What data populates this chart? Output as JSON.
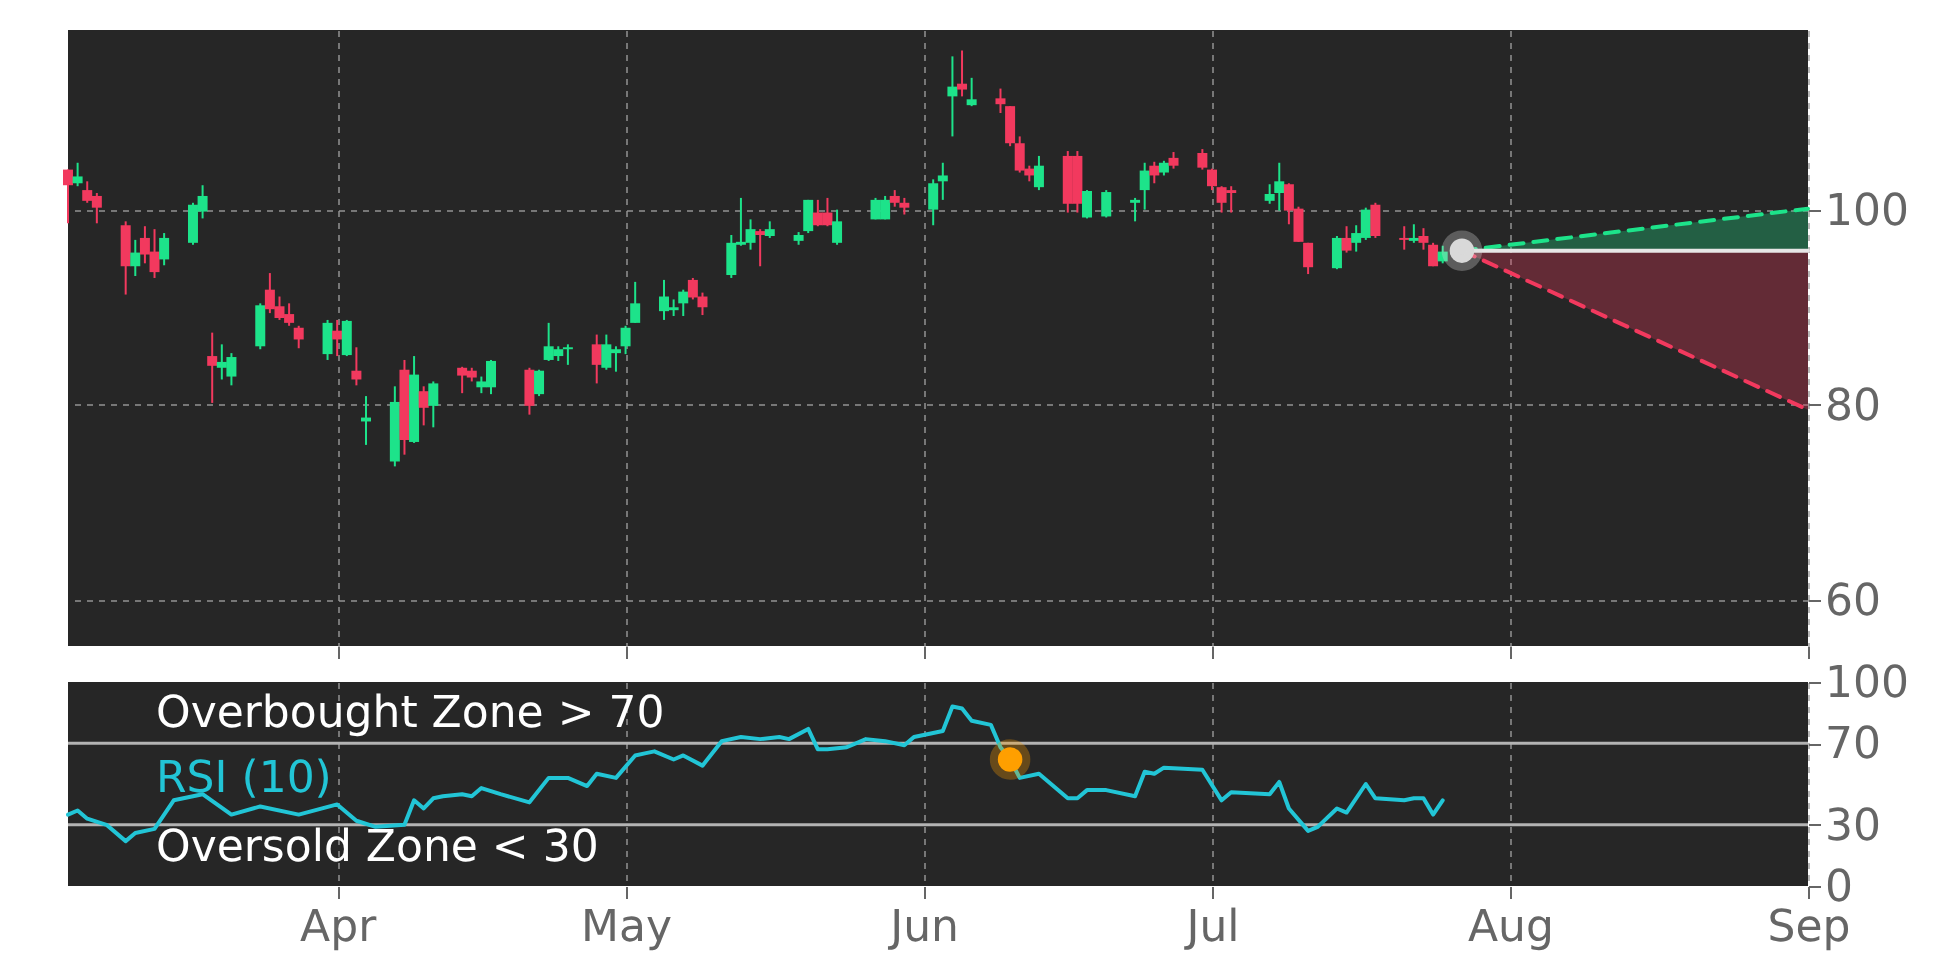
{
  "chart_data": [
    {
      "type": "candlestick",
      "colors": [
        "#f2395e",
        "#1de38a",
        "#f2395e",
        "#f2395e",
        "#f2395e",
        "#1de38a",
        "#f2395e",
        "#f2395e",
        "#1de38a",
        "#1de38a",
        "#1de38a",
        "#f2395e",
        "#1de38a",
        "#1de38a",
        "#1de38a",
        "#f2395e",
        "#f2395e",
        "#f2395e",
        "#f2395e",
        "#1de38a",
        "#f2395e",
        "#1de38a",
        "#f2395e",
        "#1de38a",
        "#1de38a",
        "#f2395e",
        "#1de38a",
        "#f2395e",
        "#1de38a",
        "#f2395e",
        "#f2395e",
        "#1de38a",
        "#1de38a",
        "#f2395e",
        "#1de38a",
        "#1de38a",
        "#1de38a",
        "#1de38a",
        "#f2395e",
        "#1de38a",
        "#1de38a",
        "#1de38a",
        "#1de38a",
        "#1de38a",
        "#1de38a",
        "#1de38a",
        "#f2395e",
        "#f2395e",
        "#1de38a",
        "#1de38a",
        "#1de38a",
        "#f2395e",
        "#1de38a",
        "#1de38a",
        "#1de38a",
        "#f2395e",
        "#f2395e",
        "#1de38a",
        "#1de38a",
        "#1de38a",
        "#f2395e",
        "#f2395e",
        "#1de38a",
        "#1de38a",
        "#1de38a",
        "#f2395e",
        "#1de38a",
        "#f2395e",
        "#f2395e",
        "#f2395e",
        "#f2395e",
        "#1de38a",
        "#f2395e",
        "#f2395e",
        "#1de38a",
        "#1de38a",
        "#1de38a",
        "#1de38a",
        "#f2395e",
        "#1de38a",
        "#f2395e",
        "#f2395e",
        "#f2395e",
        "#f2395e",
        "#f2395e",
        "#1de38a",
        "#1de38a",
        "#f2395e",
        "#f2395e",
        "#f2395e",
        "#1de38a",
        "#f2395e",
        "#1de38a",
        "#1de38a",
        "#f2395e",
        "#f2395e",
        "#1de38a",
        "#f2395e",
        "#f2395e",
        "#1de38a"
      ],
      "xlim": [
        "--03-04",
        "--09-01"
      ],
      "xticks": [
        {
          "value": "--04-01",
          "label": null
        },
        {
          "value": "--05-01",
          "label": null
        },
        {
          "value": "--06-01",
          "label": null
        },
        {
          "value": "--07-01",
          "label": null
        },
        {
          "value": "--08-01",
          "label": null
        },
        {
          "value": "--09-01",
          "label": null
        }
      ],
      "ylim": [
        55.3,
        118.4
      ],
      "yticks": [
        60,
        80,
        100
      ],
      "grid": true,
      "tick_labels": "y",
      "x": [
        "--03-04",
        "--03-05",
        "--03-06",
        "--03-07",
        "--03-10",
        "--03-11",
        "--03-12",
        "--03-13",
        "--03-14",
        "--03-17",
        "--03-18",
        "--03-19",
        "--03-20",
        "--03-21",
        "--03-24",
        "--03-25",
        "--03-26",
        "--03-27",
        "--03-28",
        "--03-31",
        "--04-01",
        "--04-02",
        "--04-03",
        "--04-04",
        "--04-07",
        "--04-08",
        "--04-09",
        "--04-10",
        "--04-11",
        "--04-14",
        "--04-15",
        "--04-16",
        "--04-17",
        "--04-21",
        "--04-22",
        "--04-23",
        "--04-24",
        "--04-25",
        "--04-28",
        "--04-29",
        "--04-30",
        "--05-01",
        "--05-02",
        "--05-05",
        "--05-06",
        "--05-07",
        "--05-08",
        "--05-09",
        "--05-12",
        "--05-13",
        "--05-14",
        "--05-15",
        "--05-16",
        "--05-19",
        "--05-20",
        "--05-21",
        "--05-22",
        "--05-23",
        "--05-27",
        "--05-28",
        "--05-29",
        "--05-30",
        "--06-02",
        "--06-03",
        "--06-04",
        "--06-05",
        "--06-06",
        "--06-09",
        "--06-10",
        "--06-11",
        "--06-12",
        "--06-13",
        "--06-16",
        "--06-17",
        "--06-18",
        "--06-20",
        "--06-23",
        "--06-24",
        "--06-25",
        "--06-26",
        "--06-27",
        "--06-30",
        "--07-01",
        "--07-02",
        "--07-03",
        "--07-07",
        "--07-08",
        "--07-09",
        "--07-10",
        "--07-11",
        "--07-14",
        "--07-15",
        "--07-16",
        "--07-17",
        "--07-18",
        "--07-21",
        "--07-22",
        "--07-23",
        "--07-24",
        "--07-25"
      ],
      "ohlc": [
        [
          104.1,
          104.1,
          98.6,
          102.5
        ],
        [
          102.7,
          104.8,
          102.4,
          103.4
        ],
        [
          102.0,
          102.9,
          100.7,
          100.9
        ],
        [
          101.4,
          101.7,
          98.6,
          100.2
        ],
        [
          98.4,
          98.8,
          91.3,
          94.2
        ],
        [
          94.2,
          96.9,
          93.2,
          95.6
        ],
        [
          97.1,
          98.3,
          94.5,
          95.4
        ],
        [
          95.7,
          98.0,
          93.0,
          93.6
        ],
        [
          94.9,
          97.6,
          94.3,
          97.1
        ],
        [
          96.6,
          100.7,
          96.4,
          100.5
        ],
        [
          99.8,
          102.5,
          99.1,
          101.4
        ],
        [
          85.0,
          87.4,
          80.2,
          84.0
        ],
        [
          83.8,
          86.2,
          82.6,
          84.4
        ],
        [
          82.9,
          85.3,
          82.0,
          84.9
        ],
        [
          86.0,
          90.4,
          85.7,
          90.2
        ],
        [
          91.8,
          93.5,
          89.4,
          89.8
        ],
        [
          90.1,
          91.1,
          88.7,
          88.9
        ],
        [
          89.3,
          90.4,
          88.1,
          88.4
        ],
        [
          87.9,
          88.1,
          85.8,
          86.7
        ],
        [
          85.2,
          88.7,
          84.6,
          88.4
        ],
        [
          87.6,
          88.7,
          85.0,
          86.7
        ],
        [
          85.1,
          88.7,
          85.0,
          88.6
        ],
        [
          83.5,
          85.9,
          82.0,
          82.6
        ],
        [
          78.3,
          80.9,
          75.9,
          78.7
        ],
        [
          74.2,
          81.9,
          73.7,
          80.3
        ],
        [
          83.6,
          84.6,
          74.9,
          76.4
        ],
        [
          76.2,
          85.0,
          76.1,
          83.1
        ],
        [
          81.4,
          81.9,
          77.9,
          79.7
        ],
        [
          79.9,
          82.4,
          77.7,
          82.2
        ],
        [
          83.8,
          83.9,
          81.2,
          83.0
        ],
        [
          83.5,
          83.8,
          82.4,
          82.8
        ],
        [
          81.8,
          82.9,
          81.2,
          82.4
        ],
        [
          81.8,
          84.6,
          81.1,
          84.5
        ],
        [
          83.6,
          83.8,
          79.0,
          79.9
        ],
        [
          81.1,
          83.6,
          80.9,
          83.5
        ],
        [
          84.6,
          88.4,
          84.5,
          86.0
        ],
        [
          85.0,
          86.0,
          84.5,
          85.7
        ],
        [
          85.7,
          86.2,
          84.1,
          85.9
        ],
        [
          86.2,
          87.2,
          82.2,
          84.1
        ],
        [
          83.8,
          87.2,
          83.6,
          86.2
        ],
        [
          85.3,
          86.0,
          83.4,
          85.7
        ],
        [
          86.0,
          88.1,
          85.2,
          87.9
        ],
        [
          88.4,
          92.6,
          88.4,
          90.4
        ],
        [
          89.6,
          92.8,
          88.7,
          91.1
        ],
        [
          89.7,
          90.8,
          89.1,
          90.0
        ],
        [
          90.4,
          91.8,
          89.1,
          91.6
        ],
        [
          92.8,
          93.0,
          90.8,
          91.0
        ],
        [
          91.1,
          91.5,
          89.2,
          90.0
        ],
        [
          93.3,
          97.4,
          93.0,
          96.6
        ],
        [
          96.4,
          101.2,
          96.3,
          96.7
        ],
        [
          96.6,
          99.0,
          95.9,
          98.0
        ],
        [
          97.8,
          98.0,
          94.2,
          97.4
        ],
        [
          97.3,
          98.8,
          97.1,
          98.0
        ],
        [
          96.8,
          97.7,
          96.4,
          97.4
        ],
        [
          97.8,
          101.0,
          97.6,
          101.0
        ],
        [
          99.7,
          101.0,
          98.3,
          98.4
        ],
        [
          99.7,
          101.2,
          98.3,
          98.4
        ],
        [
          96.6,
          100.0,
          96.4,
          98.8
        ],
        [
          99.0,
          101.2,
          99.0,
          101.0
        ],
        [
          99.0,
          101.4,
          99.0,
          101.0
        ],
        [
          101.4,
          102.0,
          100.3,
          100.7
        ],
        [
          100.7,
          101.2,
          99.5,
          100.2
        ],
        [
          100.0,
          103.1,
          98.4,
          102.7
        ],
        [
          102.9,
          104.8,
          101.0,
          103.5
        ],
        [
          111.6,
          115.7,
          107.5,
          112.6
        ],
        [
          112.9,
          116.3,
          111.6,
          112.3
        ],
        [
          110.7,
          113.5,
          110.6,
          111.3
        ],
        [
          111.4,
          112.4,
          109.9,
          110.8
        ],
        [
          110.6,
          110.6,
          106.5,
          106.8
        ],
        [
          106.8,
          107.5,
          103.8,
          104.0
        ],
        [
          104.2,
          104.5,
          102.9,
          103.5
        ],
        [
          102.3,
          105.5,
          102.0,
          104.5
        ],
        [
          105.5,
          106.0,
          99.7,
          100.6
        ],
        [
          105.5,
          106.0,
          99.7,
          100.6
        ],
        [
          99.2,
          102.0,
          99.1,
          101.9
        ],
        [
          99.3,
          102.0,
          99.2,
          101.8
        ],
        [
          100.7,
          101.2,
          98.8,
          101.0
        ],
        [
          102.0,
          104.8,
          100.0,
          104.0
        ],
        [
          104.5,
          104.9,
          102.7,
          103.5
        ],
        [
          103.8,
          105.0,
          103.5,
          104.8
        ],
        [
          105.3,
          105.9,
          104.2,
          104.5
        ],
        [
          105.8,
          106.2,
          104.1,
          104.3
        ],
        [
          104.1,
          104.2,
          102.0,
          102.4
        ],
        [
          102.3,
          102.4,
          99.7,
          100.7
        ],
        [
          102.0,
          102.4,
          99.7,
          101.7
        ],
        [
          100.9,
          102.6,
          100.6,
          101.6
        ],
        [
          101.7,
          104.8,
          99.9,
          102.9
        ],
        [
          102.6,
          102.7,
          98.5,
          99.9
        ],
        [
          100.1,
          100.3,
          96.7,
          96.7
        ],
        [
          96.6,
          96.6,
          93.4,
          94.1
        ],
        [
          94.0,
          97.3,
          93.9,
          97.1
        ],
        [
          97.1,
          98.3,
          95.6,
          95.8
        ],
        [
          96.6,
          98.4,
          95.7,
          97.6
        ],
        [
          97.1,
          100.2,
          96.9,
          100.0
        ],
        [
          100.5,
          100.7,
          97.1,
          97.3
        ],
        [
          97.1,
          98.3,
          95.9,
          96.9
        ],
        [
          96.8,
          98.5,
          96.6,
          97.1
        ],
        [
          97.3,
          98.1,
          95.9,
          96.6
        ],
        [
          96.4,
          96.6,
          94.2,
          94.2
        ],
        [
          94.7,
          96.3,
          94.5,
          95.7
        ]
      ],
      "series": [
        {
          "type": "line",
          "x": [
            "--07-27",
            "--09-01"
          ],
          "values": [
            95.8,
            100.1
          ],
          "lower": [
            95.8,
            95.8
          ],
          "upper": [
            95.8,
            100.1
          ],
          "color": "#1de38a",
          "line_style": "dashed"
        },
        {
          "type": "line",
          "x": [
            "--07-27",
            "--09-01"
          ],
          "values": [
            95.8,
            79.5
          ],
          "lower": [
            95.8,
            79.5
          ],
          "upper": [
            95.8,
            95.8
          ],
          "color": "#f2395e",
          "line_style": "dashed"
        },
        {
          "type": "line",
          "x": [
            "--07-27",
            "--09-01"
          ],
          "values": [
            95.8,
            95.8
          ],
          "color": "#e6e6e6",
          "line_style": "solid"
        },
        {
          "type": "scatter",
          "x": [
            "--07-27"
          ],
          "values": [
            95.8
          ],
          "color": "#d9d9d9",
          "marker": "circle"
        }
      ]
    },
    {
      "type": "line",
      "xlim": [
        "--03-04",
        "--09-01"
      ],
      "xticks": [
        {
          "value": "--04-01",
          "label": "Apr"
        },
        {
          "value": "--05-01",
          "label": "May"
        },
        {
          "value": "--06-01",
          "label": "Jun"
        },
        {
          "value": "--07-01",
          "label": "Jul"
        },
        {
          "value": "--08-01",
          "label": "Aug"
        },
        {
          "value": "--09-01",
          "label": "Sep"
        }
      ],
      "ylim": [
        0,
        100
      ],
      "yticks": [
        0,
        30,
        70,
        100
      ],
      "grid": "x",
      "ref_lines": [
        {
          "axis": "y",
          "value": 70,
          "label": "Overbought Zone > 70",
          "color": "#b3b3b3"
        },
        {
          "axis": "y",
          "value": 30,
          "label": "Oversold Zone < 30",
          "color": "#b3b3b3"
        }
      ],
      "series": [
        {
          "name": "RSI (10)",
          "color": "#22c5d6",
          "line_style": "solid",
          "x": [
            "--03-04",
            "--03-05",
            "--03-06",
            "--03-08",
            "--03-10",
            "--03-11",
            "--03-13",
            "--03-15",
            "--03-18",
            "--03-21",
            "--03-24",
            "--03-28",
            "--04-01",
            "--04-03",
            "--04-05",
            "--04-08",
            "--04-09",
            "--04-10",
            "--04-11",
            "--04-12",
            "--04-14",
            "--04-15",
            "--04-16",
            "--04-18",
            "--04-21",
            "--04-23",
            "--04-25",
            "--04-27",
            "--04-28",
            "--04-30",
            "--05-02",
            "--05-03",
            "--05-04",
            "--05-06",
            "--05-07",
            "--05-09",
            "--05-11",
            "--05-13",
            "--05-15",
            "--05-17",
            "--05-18",
            "--05-20",
            "--05-21",
            "--05-22",
            "--05-24",
            "--05-26",
            "--05-28",
            "--05-30",
            "--05-31",
            "--06-03",
            "--06-04",
            "--06-05",
            "--06-06",
            "--06-08",
            "--06-09",
            "--06-10",
            "--06-11",
            "--06-13",
            "--06-16",
            "--06-17",
            "--06-18",
            "--06-20",
            "--06-23",
            "--06-24",
            "--06-25",
            "--06-26",
            "--06-30",
            "--07-02",
            "--07-03",
            "--07-07",
            "--07-08",
            "--07-09",
            "--07-11",
            "--07-12",
            "--07-14",
            "--07-15",
            "--07-17",
            "--07-18",
            "--07-21",
            "--07-22",
            "--07-23",
            "--07-24",
            "--07-25"
          ],
          "values": [
            35,
            37,
            33,
            30,
            22,
            26,
            28,
            42,
            45,
            35,
            39,
            35,
            40,
            32,
            29,
            30,
            42,
            38,
            43,
            44,
            45,
            44,
            48,
            45,
            41,
            53,
            53,
            49,
            55,
            53,
            64,
            65,
            66,
            62,
            64,
            59,
            71,
            73,
            72,
            73,
            72,
            77,
            67,
            67,
            68,
            72,
            71,
            69,
            73,
            76,
            88,
            87,
            81,
            79,
            68,
            62,
            53,
            55,
            43,
            43,
            47,
            47,
            44,
            56,
            55,
            58,
            57,
            42,
            46,
            45,
            51,
            38,
            27,
            29,
            38,
            36,
            50,
            43,
            42,
            43,
            43,
            35,
            42
          ]
        },
        {
          "type": "scatter",
          "x": [
            "--06-10"
          ],
          "values": [
            62
          ],
          "color": "#ffa000",
          "marker": "circle"
        }
      ]
    }
  ]
}
